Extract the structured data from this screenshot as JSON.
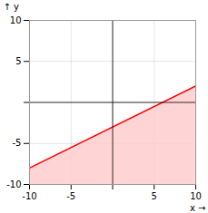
{
  "chart_data": {
    "type": "line",
    "x": [
      -10,
      10
    ],
    "series": [
      {
        "type": "area",
        "color": "#ffcccc",
        "values": [
          -8,
          2
        ]
      },
      {
        "type": "line",
        "color": "#ff0000",
        "values": [
          -8,
          2
        ]
      }
    ],
    "xlim": [
      -10,
      10
    ],
    "ylim": [
      -10,
      10
    ],
    "xticks": [
      -10,
      -5,
      {
        "value": 0,
        "label": null
      },
      5,
      10
    ],
    "yticks": [
      -10,
      -5,
      {
        "value": 0,
        "label": null
      },
      5,
      10
    ],
    "xlabel": "x",
    "ylabel": "y",
    "grid": true
  }
}
